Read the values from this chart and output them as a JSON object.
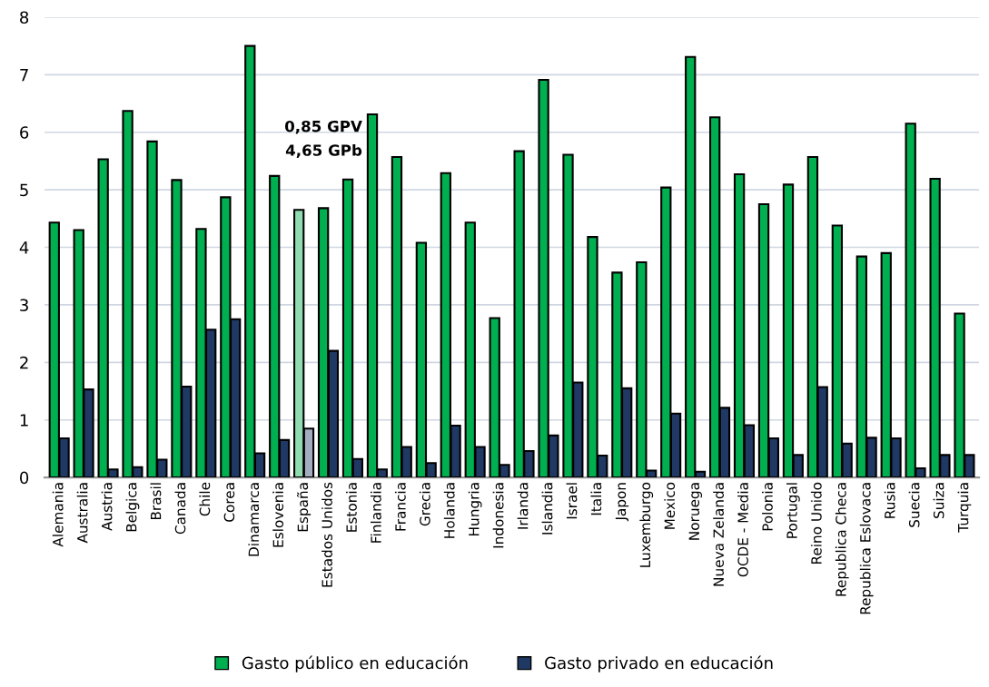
{
  "chart_data": {
    "type": "bar",
    "categories": [
      "Alemania",
      "Australia",
      "Austria",
      "Belgica",
      "Brasil",
      "Canada",
      "Chile",
      "Corea",
      "Dinamarca",
      "Eslovenia",
      "España",
      "Estados Unidos",
      "Estonia",
      "Finlandia",
      "Francia",
      "Grecia",
      "Holanda",
      "Hungria",
      "Indonesia",
      "Irlanda",
      "Islandia",
      "Israel",
      "Italia",
      "Japon",
      "Luxemburgo",
      "Mexico",
      "Noruega",
      "Nueva Zelanda",
      "OCDE - Media",
      "Polonia",
      "Portugal",
      "Reino Unido",
      "Republica Checa",
      "Republica Eslovaca",
      "Rusia",
      "Suecia",
      "Suiza",
      "Turquia"
    ],
    "series": [
      {
        "name": "Gasto público en educación",
        "color": "#00b050",
        "colors": [
          "#00b050",
          "#00b050",
          "#00b050",
          "#00b050",
          "#00b050",
          "#00b050",
          "#00b050",
          "#00b050",
          "#00b050",
          "#00b050",
          "#8fdcb0",
          "#00b050",
          "#00b050",
          "#00b050",
          "#00b050",
          "#00b050",
          "#00b050",
          "#00b050",
          "#00b050",
          "#00b050",
          "#00b050",
          "#00b050",
          "#00b050",
          "#00b050",
          "#00b050",
          "#00b050",
          "#00b050",
          "#00b050",
          "#00b050",
          "#00b050",
          "#00b050",
          "#00b050",
          "#00b050",
          "#00b050",
          "#00b050",
          "#00b050",
          "#00b050",
          "#00b050"
        ],
        "values": [
          4.43,
          4.3,
          5.53,
          6.37,
          5.84,
          5.17,
          4.32,
          4.87,
          7.5,
          5.24,
          4.65,
          4.68,
          5.18,
          6.31,
          5.57,
          4.08,
          5.29,
          4.43,
          2.77,
          5.67,
          6.91,
          5.61,
          4.18,
          3.56,
          3.74,
          5.04,
          7.31,
          6.26,
          5.27,
          4.75,
          5.09,
          5.57,
          4.38,
          3.84,
          3.9,
          6.15,
          5.19,
          2.85
        ]
      },
      {
        "name": "Gasto privado en educación",
        "color": "#1f3864",
        "colors": [
          "#1f3864",
          "#1f3864",
          "#1f3864",
          "#1f3864",
          "#1f3864",
          "#1f3864",
          "#1f3864",
          "#1f3864",
          "#1f3864",
          "#1f3864",
          "#a4acc0",
          "#1f3864",
          "#1f3864",
          "#1f3864",
          "#1f3864",
          "#1f3864",
          "#1f3864",
          "#1f3864",
          "#1f3864",
          "#1f3864",
          "#1f3864",
          "#1f3864",
          "#1f3864",
          "#1f3864",
          "#1f3864",
          "#1f3864",
          "#1f3864",
          "#1f3864",
          "#1f3864",
          "#1f3864",
          "#1f3864",
          "#1f3864",
          "#1f3864",
          "#1f3864",
          "#1f3864",
          "#1f3864",
          "#1f3864",
          "#1f3864"
        ],
        "values": [
          0.68,
          1.53,
          0.14,
          0.18,
          0.31,
          1.58,
          2.57,
          2.75,
          0.42,
          0.65,
          0.85,
          2.2,
          0.32,
          0.14,
          0.53,
          0.25,
          0.9,
          0.53,
          0.22,
          0.46,
          0.73,
          1.65,
          0.38,
          1.55,
          0.12,
          1.11,
          0.1,
          1.21,
          0.91,
          0.68,
          0.39,
          1.57,
          0.59,
          0.69,
          0.68,
          0.16,
          0.39,
          0.39
        ]
      }
    ],
    "annotations": [
      "0,85 GPV",
      "4,65 GPb"
    ],
    "ylim": [
      0,
      8
    ],
    "yticks": [
      0,
      1,
      2,
      3,
      4,
      5,
      6,
      7,
      8
    ],
    "grid": "y",
    "legend": "bottom"
  }
}
